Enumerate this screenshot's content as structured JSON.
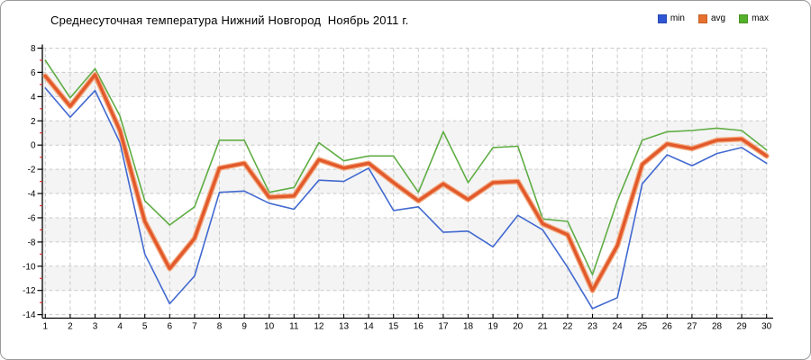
{
  "chart_data": {
    "type": "line",
    "title": "Среднесуточная температура Нижний Новгород  Ноябрь 2011 г.",
    "xlabel": "",
    "ylabel": "",
    "x": [
      1,
      2,
      3,
      4,
      5,
      6,
      7,
      8,
      9,
      10,
      11,
      12,
      13,
      14,
      15,
      16,
      17,
      18,
      19,
      20,
      21,
      22,
      23,
      24,
      25,
      26,
      27,
      28,
      29,
      30
    ],
    "xticks": [
      1,
      2,
      3,
      4,
      5,
      6,
      7,
      8,
      9,
      10,
      11,
      12,
      13,
      14,
      15,
      16,
      17,
      18,
      19,
      20,
      21,
      22,
      23,
      24,
      25,
      26,
      27,
      28,
      29,
      30
    ],
    "yticks": [
      8,
      6,
      4,
      2,
      0,
      -2,
      -4,
      -6,
      -8,
      -10,
      -12,
      -14
    ],
    "ylim": [
      -14,
      8
    ],
    "xlim": [
      1,
      30
    ],
    "grid": "dashed-both-axes",
    "legend_position": "top-right",
    "series": [
      {
        "name": "min",
        "color": "#4169d0",
        "line_width": 1.6,
        "values": [
          4.7,
          2.3,
          4.5,
          0.2,
          -9.0,
          -13.1,
          -10.8,
          -3.9,
          -3.8,
          -4.8,
          -5.3,
          -2.9,
          -3.0,
          -1.9,
          -5.4,
          -5.1,
          -7.2,
          -7.1,
          -8.4,
          -5.8,
          -7.0,
          -10.1,
          -13.5,
          -12.6,
          -3.2,
          -0.8,
          -1.7,
          -0.7,
          -0.2,
          -1.5
        ]
      },
      {
        "name": "avg",
        "color": "#e2592b",
        "halo_color": "#f3ab81",
        "line_width": 3.4,
        "values": [
          5.7,
          3.2,
          5.8,
          1.2,
          -6.3,
          -10.2,
          -7.7,
          -1.9,
          -1.5,
          -4.3,
          -4.2,
          -1.2,
          -1.9,
          -1.5,
          -3.1,
          -4.6,
          -3.2,
          -4.5,
          -3.1,
          -3.0,
          -6.5,
          -7.4,
          -12.0,
          -8.3,
          -1.6,
          0.1,
          -0.3,
          0.4,
          0.5,
          -0.9
        ]
      },
      {
        "name": "max",
        "color": "#5fad44",
        "line_width": 1.6,
        "values": [
          7.0,
          3.9,
          6.3,
          2.4,
          -4.6,
          -6.6,
          -5.1,
          0.4,
          0.4,
          -3.9,
          -3.5,
          0.2,
          -1.3,
          -0.9,
          -0.9,
          -3.9,
          1.1,
          -3.1,
          -0.2,
          -0.1,
          -6.1,
          -6.3,
          -10.7,
          -4.6,
          0.4,
          1.1,
          1.2,
          1.4,
          1.2,
          -0.4
        ]
      }
    ]
  },
  "legend": {
    "items": [
      {
        "label": "min",
        "color": "#2e55d4"
      },
      {
        "label": "avg",
        "color": "#e8702e"
      },
      {
        "label": "max",
        "color": "#55b02a"
      }
    ]
  },
  "style": {
    "background": "#ffffff",
    "border_color": "#9a9a9a",
    "band_fill": "#f4f4f4",
    "grid_color": "#c9c9c9",
    "axis_color": "#000000",
    "minor_tick_color": "#e03030",
    "text_color": "#000000"
  }
}
